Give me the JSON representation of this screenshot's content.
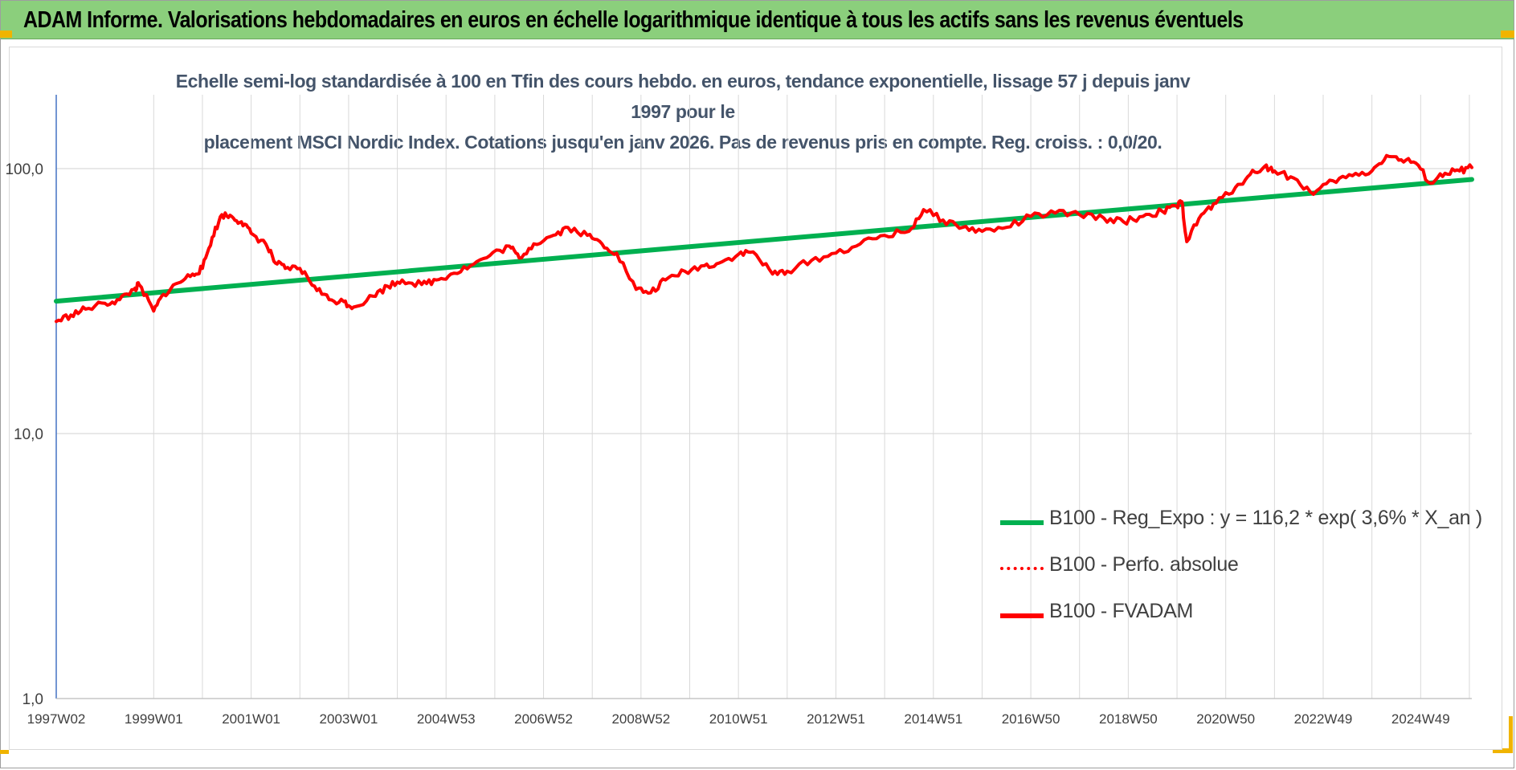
{
  "header": {
    "title": "ADAM Informe. Valorisations hebdomadaires en euros en échelle logarithmique identique à tous les actifs sans les revenus éventuels"
  },
  "colors": {
    "header_bg": "#8bcf7c",
    "corner_accent": "#f0b400",
    "trend": "#00b050",
    "series": "#ff0000",
    "axis": "#4472c4",
    "grid": "#d9d9d9"
  },
  "chart_data": {
    "type": "line",
    "title": "Echelle semi-log standardisée à 100 en Tfin des cours hebdo. en euros, tendance exponentielle, lissage 57 j depuis janv 1997 pour le placement MSCI Nordic Index. Cotations jusqu'en janv 2026. Pas de revenus pris en compte. Reg. croiss. : 0,0/20.",
    "title_lines": [
      "Echelle semi-log standardisée à 100 en Tfin des cours hebdo. en euros, tendance exponentielle, lissage 57 j depuis janv 1997 pour le",
      "placement MSCI Nordic Index. Cotations jusqu'en janv 2026. Pas de revenus pris en compte. Reg. croiss. : 0,0/20."
    ],
    "y_scale": "log",
    "ylim": [
      1,
      190
    ],
    "xlim": [
      1997.0,
      2026.05
    ],
    "y_ticks": [
      {
        "value": 1,
        "label": "1,0"
      },
      {
        "value": 10,
        "label": "10,0"
      },
      {
        "value": 100,
        "label": "100,0"
      }
    ],
    "x_ticks": [
      {
        "value": 1997.0,
        "label": "1997W02"
      },
      {
        "value": 1999.0,
        "label": "1999W01"
      },
      {
        "value": 2001.0,
        "label": "2001W01"
      },
      {
        "value": 2003.0,
        "label": "2003W01"
      },
      {
        "value": 2005.0,
        "label": "2004W53"
      },
      {
        "value": 2007.0,
        "label": "2006W52"
      },
      {
        "value": 2009.0,
        "label": "2008W52"
      },
      {
        "value": 2011.0,
        "label": "2010W51"
      },
      {
        "value": 2013.0,
        "label": "2012W51"
      },
      {
        "value": 2015.0,
        "label": "2014W51"
      },
      {
        "value": 2017.0,
        "label": "2016W50"
      },
      {
        "value": 2019.0,
        "label": "2018W50"
      },
      {
        "value": 2021.0,
        "label": "2020W50"
      },
      {
        "value": 2023.0,
        "label": "2022W49"
      },
      {
        "value": 2025.0,
        "label": "2024W49"
      }
    ],
    "grid": true,
    "legend_position": "lower-right",
    "series": [
      {
        "name": "B100 - Reg_Expo : y = 116,2 * exp( 3,6% *  X_an )",
        "style": "solid",
        "color": "#00b050",
        "x": [
          1997.0,
          2026.05
        ],
        "y": [
          31.6,
          91.0
        ]
      },
      {
        "name": "B100 - Perfo. absolue",
        "style": "dotted",
        "color": "#ff0000",
        "x": [],
        "y": []
      },
      {
        "name": "B100 - FVADAM",
        "style": "solid",
        "color": "#ff0000",
        "x": [
          1997.0,
          1997.3,
          1997.6,
          1998.0,
          1998.3,
          1998.6,
          1998.7,
          1999.0,
          1999.2,
          1999.5,
          1999.8,
          2000.0,
          2000.2,
          2000.4,
          2000.6,
          2000.8,
          2001.0,
          2001.3,
          2001.5,
          2001.7,
          2002.0,
          2002.3,
          2002.6,
          2002.9,
          2003.1,
          2003.5,
          2003.8,
          2004.1,
          2004.5,
          2004.8,
          2005.1,
          2005.5,
          2005.9,
          2006.3,
          2006.5,
          2006.8,
          2007.2,
          2007.5,
          2007.9,
          2008.2,
          2008.5,
          2008.9,
          2009.2,
          2009.5,
          2009.9,
          2010.3,
          2010.6,
          2011.0,
          2011.3,
          2011.7,
          2012.0,
          2012.5,
          2013.0,
          2013.5,
          2014.0,
          2014.5,
          2014.8,
          2015.2,
          2015.6,
          2016.0,
          2016.5,
          2017.0,
          2017.5,
          2018.0,
          2018.5,
          2018.9,
          2019.3,
          2019.7,
          2020.0,
          2020.1,
          2020.2,
          2020.5,
          2020.8,
          2021.2,
          2021.5,
          2021.8,
          2022.0,
          2022.4,
          2022.8,
          2023.2,
          2023.6,
          2024.0,
          2024.3,
          2024.6,
          2024.9,
          2025.2,
          2025.5,
          2025.8,
          2026.05
        ],
        "y": [
          26.5,
          28.0,
          29.5,
          31.0,
          32.0,
          35.0,
          36.5,
          29.0,
          33.5,
          37.0,
          40.0,
          42.0,
          55.0,
          67.0,
          66.0,
          63.0,
          57.0,
          52.0,
          44.0,
          42.0,
          42.0,
          36.0,
          32.0,
          31.5,
          30.0,
          33.0,
          36.0,
          38.0,
          36.5,
          38.0,
          40.0,
          43.0,
          47.0,
          51.0,
          46.0,
          52.0,
          56.0,
          60.0,
          56.0,
          52.0,
          48.0,
          35.0,
          34.0,
          38.0,
          41.0,
          43.0,
          44.0,
          47.5,
          48.5,
          40.0,
          41.0,
          45.0,
          48.0,
          52.0,
          56.0,
          58.0,
          70.0,
          64.0,
          60.0,
          58.0,
          60.0,
          66.0,
          68.0,
          67.0,
          65.0,
          63.0,
          66.0,
          69.0,
          72.0,
          75.0,
          53.0,
          67.0,
          74.0,
          85.0,
          95.0,
          102.0,
          98.0,
          92.0,
          80.0,
          90.0,
          94.0,
          98.0,
          112.0,
          108.0,
          105.0,
          88.0,
          96.0,
          98.0,
          101.0
        ]
      }
    ]
  }
}
